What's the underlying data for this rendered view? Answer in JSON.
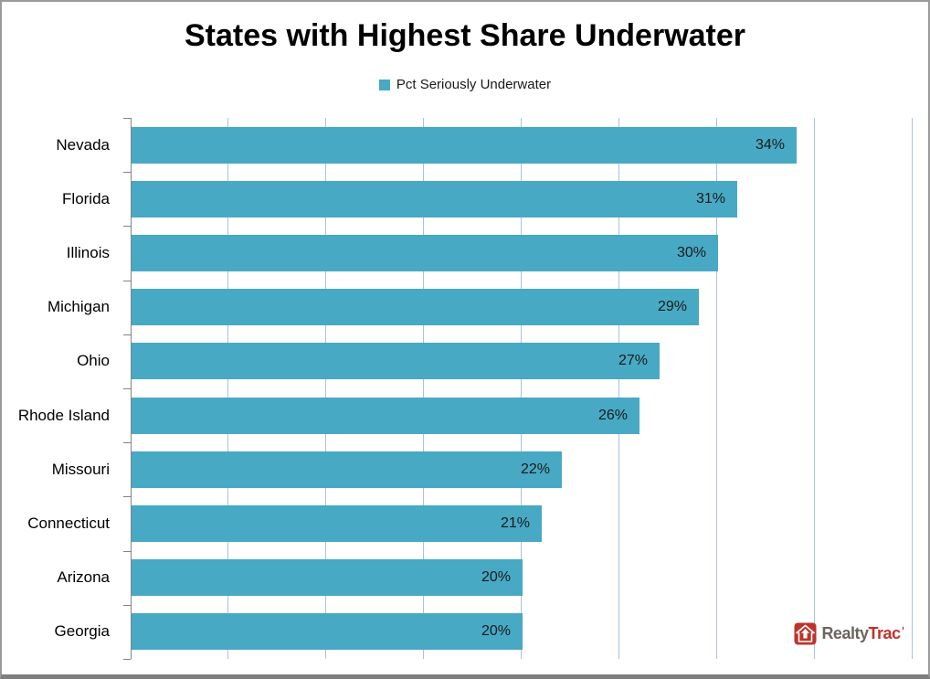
{
  "title": "States with Highest Share Underwater",
  "legend": {
    "label": "Pct Seriously Underwater"
  },
  "chart_data": {
    "type": "bar",
    "orientation": "horizontal",
    "title": "States with Highest Share Underwater",
    "legend_entries": [
      "Pct Seriously Underwater"
    ],
    "legend_position": "top",
    "categories": [
      "Nevada",
      "Florida",
      "Illinois",
      "Michigan",
      "Ohio",
      "Rhode Island",
      "Missouri",
      "Connecticut",
      "Arizona",
      "Georgia"
    ],
    "values": [
      34,
      31,
      30,
      29,
      27,
      26,
      22,
      21,
      20,
      20
    ],
    "value_labels": [
      "34%",
      "31%",
      "30%",
      "29%",
      "27%",
      "26%",
      "22%",
      "21%",
      "20%",
      "20%"
    ],
    "xlabel": "",
    "ylabel": "",
    "xlim": [
      0,
      40
    ],
    "gridline_step": 5,
    "grid": true,
    "x_tick_labels_visible": false
  },
  "colors": {
    "bar": "#47A9C4",
    "gridline": "#A9C2E1",
    "axis": "#848484",
    "value_text": "#1a1a1a",
    "logo_red": "#BE332C",
    "logo_gray": "#6B655F"
  },
  "branding": {
    "realty": "Realty",
    "trac": "Trac",
    "trademark": "ˈ"
  }
}
